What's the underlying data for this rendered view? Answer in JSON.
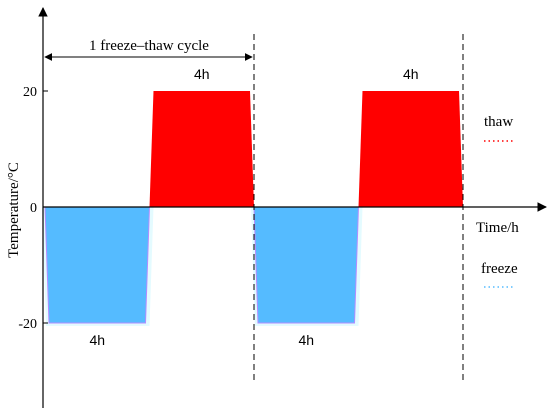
{
  "figure": {
    "cycle_label": "1 freeze–thaw cycle",
    "x_axis_label": "Time/h",
    "y_axis_label": "Temperature/°C",
    "legend": {
      "thaw_label": "thaw",
      "freeze_label": "freeze"
    },
    "colors": {
      "thaw": "#ff0000",
      "freeze": "#55bbff",
      "freeze_edge": "#b58cff",
      "glow": "#e4fbff"
    }
  },
  "chart_data": {
    "type": "area",
    "y_ticks": [
      {
        "value": 20,
        "label": "20"
      },
      {
        "value": 0,
        "label": "0"
      },
      {
        "value": -20,
        "label": "-20"
      }
    ],
    "segments": [
      {
        "phase": "freeze",
        "duration_label": "4h",
        "level": -20
      },
      {
        "phase": "thaw",
        "duration_label": "4h",
        "level": 20
      },
      {
        "phase": "freeze",
        "duration_label": "4h",
        "level": -20
      },
      {
        "phase": "thaw",
        "duration_label": "4h",
        "level": 20
      }
    ]
  }
}
